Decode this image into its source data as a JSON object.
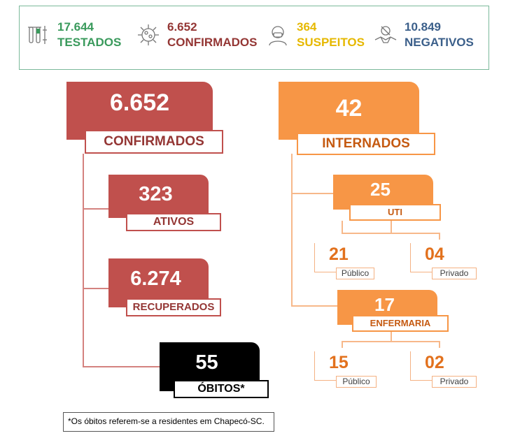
{
  "summary": {
    "testados": {
      "value": "17.644",
      "label": "TESTADOS",
      "color": "#3a9a5c",
      "icon": "test-tubes-icon"
    },
    "confirmados": {
      "value": "6.652",
      "label": "CONFIRMADOS",
      "color": "#943634",
      "icon": "virus-icon"
    },
    "suspeitos": {
      "value": "364",
      "label": "SUSPEITOS",
      "color": "#e6b800",
      "icon": "masked-person-icon"
    },
    "negativos": {
      "value": "10.849",
      "label": "NEGATIVOS",
      "color": "#3b5f8a",
      "icon": "no-virus-handshake-icon"
    }
  },
  "confirmed": {
    "value": "6.652",
    "label": "CONFIRMADOS"
  },
  "active": {
    "value": "323",
    "label": "ATIVOS"
  },
  "recovered": {
    "value": "6.274",
    "label": "RECUPERADOS"
  },
  "deaths": {
    "value": "55",
    "label": "ÓBITOS*"
  },
  "hospitalized": {
    "value": "42",
    "label": "INTERNADOS"
  },
  "icu": {
    "value": "25",
    "label": "UTI",
    "public": {
      "value": "21",
      "label": "Público"
    },
    "private": {
      "value": "04",
      "label": "Privado"
    }
  },
  "ward": {
    "value": "17",
    "label": "ENFERMARIA",
    "public": {
      "value": "15",
      "label": "Público"
    },
    "private": {
      "value": "02",
      "label": "Privado"
    }
  },
  "footnote": "*Os óbitos referem-se a residentes em Chapecó-SC."
}
